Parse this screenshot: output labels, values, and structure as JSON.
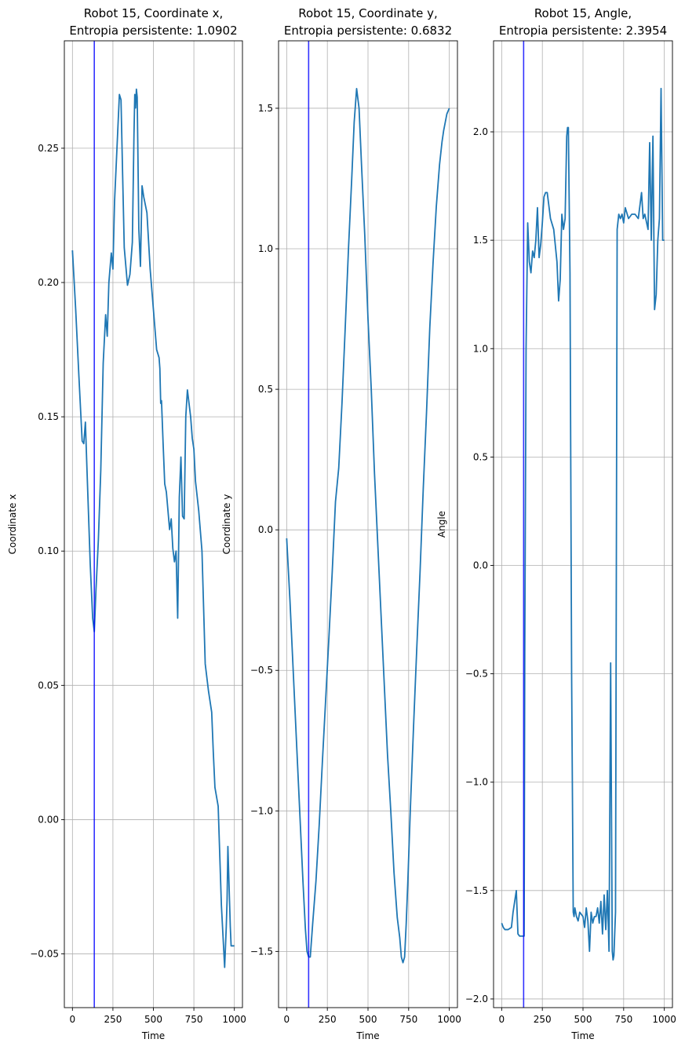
{
  "chart_data": [
    {
      "type": "line",
      "title_line1": "Robot 15, Coordinate x,",
      "title_line2": "Entropia persistente: 1.0902",
      "xlabel": "Time",
      "ylabel": "Coordinate x",
      "xlim": [
        -50,
        1050
      ],
      "ylim": [
        -0.07,
        0.29
      ],
      "xticks": [
        0,
        250,
        500,
        750,
        1000
      ],
      "xtick_labels": [
        "0",
        "250",
        "500",
        "750",
        "1000"
      ],
      "yticks": [
        -0.05,
        0.0,
        0.05,
        0.1,
        0.15,
        0.2,
        0.25
      ],
      "ytick_labels": [
        "−0.05",
        "0.00",
        "0.05",
        "0.10",
        "0.15",
        "0.20",
        "0.25"
      ],
      "grid": true,
      "vline_x": 135,
      "colors": {
        "series": "#1f77b4",
        "vline": "#0000ff"
      },
      "series": [
        {
          "x": [
            0,
            20,
            40,
            60,
            70,
            80,
            90,
            110,
            125,
            135,
            145,
            160,
            175,
            190,
            205,
            215,
            225,
            240,
            250,
            260,
            275,
            290,
            300,
            310,
            320,
            340,
            355,
            370,
            380,
            385,
            390,
            395,
            400,
            410,
            420,
            430,
            440,
            460,
            480,
            500,
            520,
            535,
            540,
            545,
            550,
            560,
            570,
            580,
            600,
            610,
            620,
            630,
            640,
            650,
            660,
            670,
            680,
            690,
            700,
            710,
            720,
            730,
            740,
            750,
            760,
            780,
            800,
            820,
            840,
            860,
            870,
            880,
            900,
            920,
            940,
            950,
            955,
            960,
            965,
            970,
            975,
            980,
            990,
            1000
          ],
          "y": [
            0.212,
            0.19,
            0.165,
            0.141,
            0.14,
            0.148,
            0.13,
            0.095,
            0.075,
            0.07,
            0.085,
            0.104,
            0.13,
            0.17,
            0.188,
            0.18,
            0.2,
            0.211,
            0.205,
            0.23,
            0.25,
            0.27,
            0.268,
            0.24,
            0.213,
            0.199,
            0.203,
            0.215,
            0.255,
            0.27,
            0.265,
            0.272,
            0.269,
            0.22,
            0.206,
            0.236,
            0.232,
            0.226,
            0.205,
            0.19,
            0.175,
            0.172,
            0.168,
            0.155,
            0.156,
            0.14,
            0.125,
            0.122,
            0.108,
            0.112,
            0.101,
            0.096,
            0.1,
            0.075,
            0.12,
            0.135,
            0.113,
            0.112,
            0.15,
            0.16,
            0.155,
            0.15,
            0.142,
            0.138,
            0.126,
            0.115,
            0.1,
            0.058,
            0.048,
            0.04,
            0.025,
            0.012,
            0.005,
            -0.032,
            -0.055,
            -0.04,
            -0.03,
            -0.01,
            -0.02,
            -0.03,
            -0.04,
            -0.047,
            -0.047,
            -0.047
          ]
        }
      ]
    },
    {
      "type": "line",
      "title_line1": "Robot 15, Coordinate y,",
      "title_line2": "Entropia persistente: 0.6832",
      "xlabel": "Time",
      "ylabel": "Coordinate y",
      "xlim": [
        -50,
        1050
      ],
      "ylim": [
        -1.7,
        1.74
      ],
      "xticks": [
        0,
        250,
        500,
        750,
        1000
      ],
      "xtick_labels": [
        "0",
        "250",
        "500",
        "750",
        "1000"
      ],
      "yticks": [
        -1.5,
        -1.0,
        -0.5,
        0.0,
        0.5,
        1.0,
        1.5
      ],
      "ytick_labels": [
        "−1.5",
        "−1.0",
        "−0.5",
        "0.0",
        "0.5",
        "1.0",
        "1.5"
      ],
      "grid": true,
      "vline_x": 135,
      "colors": {
        "series": "#1f77b4",
        "vline": "#0000ff"
      },
      "series": [
        {
          "x": [
            0,
            20,
            40,
            60,
            80,
            100,
            115,
            125,
            135,
            145,
            150,
            160,
            180,
            200,
            220,
            240,
            260,
            280,
            300,
            320,
            340,
            360,
            380,
            400,
            415,
            430,
            445,
            460,
            480,
            500,
            520,
            540,
            560,
            580,
            600,
            620,
            640,
            660,
            680,
            695,
            705,
            715,
            725,
            735,
            745,
            760,
            780,
            800,
            820,
            840,
            860,
            880,
            900,
            920,
            940,
            955,
            965,
            975,
            985,
            1000
          ],
          "y": [
            -0.03,
            -0.25,
            -0.5,
            -0.75,
            -1.0,
            -1.25,
            -1.42,
            -1.5,
            -1.52,
            -1.52,
            -1.48,
            -1.4,
            -1.25,
            -1.05,
            -0.82,
            -0.6,
            -0.38,
            -0.15,
            0.1,
            0.22,
            0.45,
            0.72,
            1.0,
            1.25,
            1.45,
            1.57,
            1.5,
            1.3,
            1.05,
            0.75,
            0.5,
            0.2,
            -0.05,
            -0.3,
            -0.55,
            -0.8,
            -1.0,
            -1.22,
            -1.38,
            -1.45,
            -1.52,
            -1.54,
            -1.52,
            -1.4,
            -1.25,
            -1.0,
            -0.7,
            -0.42,
            -0.15,
            0.15,
            0.42,
            0.72,
            0.95,
            1.15,
            1.3,
            1.38,
            1.42,
            1.45,
            1.48,
            1.5
          ]
        }
      ]
    },
    {
      "type": "line",
      "title_line1": "Robot 15, Angle,",
      "title_line2": "Entropia persistente: 2.3954",
      "xlabel": "Time",
      "ylabel": "Angle",
      "xlim": [
        -50,
        1050
      ],
      "ylim": [
        -2.04,
        2.42
      ],
      "xticks": [
        0,
        250,
        500,
        750,
        1000
      ],
      "xtick_labels": [
        "0",
        "250",
        "500",
        "750",
        "1000"
      ],
      "yticks": [
        -2.0,
        -1.5,
        -1.0,
        -0.5,
        0.0,
        0.5,
        1.0,
        1.5,
        2.0
      ],
      "ytick_labels": [
        "−2.0",
        "−1.5",
        "−1.0",
        "−0.5",
        "0.0",
        "0.5",
        "1.0",
        "1.5",
        "2.0"
      ],
      "grid": true,
      "vline_x": 135,
      "colors": {
        "series": "#1f77b4",
        "vline": "#0000ff"
      },
      "series": [
        {
          "x": [
            0,
            10,
            20,
            40,
            60,
            70,
            80,
            90,
            100,
            110,
            120,
            130,
            138,
            142,
            150,
            160,
            170,
            180,
            190,
            200,
            210,
            220,
            230,
            240,
            250,
            260,
            270,
            280,
            300,
            320,
            340,
            350,
            360,
            370,
            380,
            390,
            400,
            405,
            410,
            420,
            430,
            440,
            445,
            450,
            460,
            470,
            480,
            500,
            510,
            520,
            530,
            540,
            550,
            560,
            570,
            580,
            590,
            600,
            610,
            620,
            630,
            640,
            650,
            660,
            670,
            680,
            685,
            690,
            700,
            710,
            720,
            730,
            740,
            750,
            760,
            780,
            800,
            820,
            840,
            860,
            870,
            880,
            900,
            910,
            920,
            930,
            940,
            950,
            960,
            970,
            980,
            990,
            1000
          ],
          "y": [
            -1.65,
            -1.67,
            -1.68,
            -1.68,
            -1.67,
            -1.6,
            -1.55,
            -1.5,
            -1.7,
            -1.71,
            -1.71,
            -1.71,
            -1.71,
            -0.4,
            1.0,
            1.58,
            1.4,
            1.35,
            1.45,
            1.42,
            1.5,
            1.65,
            1.42,
            1.48,
            1.58,
            1.7,
            1.72,
            1.72,
            1.6,
            1.55,
            1.4,
            1.22,
            1.32,
            1.62,
            1.55,
            1.6,
            1.98,
            2.02,
            2.02,
            1.35,
            -0.5,
            -1.6,
            -1.62,
            -1.58,
            -1.62,
            -1.64,
            -1.6,
            -1.62,
            -1.67,
            -1.58,
            -1.64,
            -1.78,
            -1.6,
            -1.65,
            -1.62,
            -1.62,
            -1.58,
            -1.65,
            -1.55,
            -1.7,
            -1.52,
            -1.68,
            -1.5,
            -1.78,
            -0.45,
            -1.78,
            -1.82,
            -1.8,
            -1.6,
            1.55,
            1.62,
            1.6,
            1.62,
            1.58,
            1.65,
            1.6,
            1.62,
            1.62,
            1.6,
            1.72,
            1.6,
            1.62,
            1.55,
            1.95,
            1.5,
            1.98,
            1.18,
            1.25,
            1.5,
            1.6,
            2.2,
            1.5,
            1.5
          ]
        }
      ]
    }
  ]
}
